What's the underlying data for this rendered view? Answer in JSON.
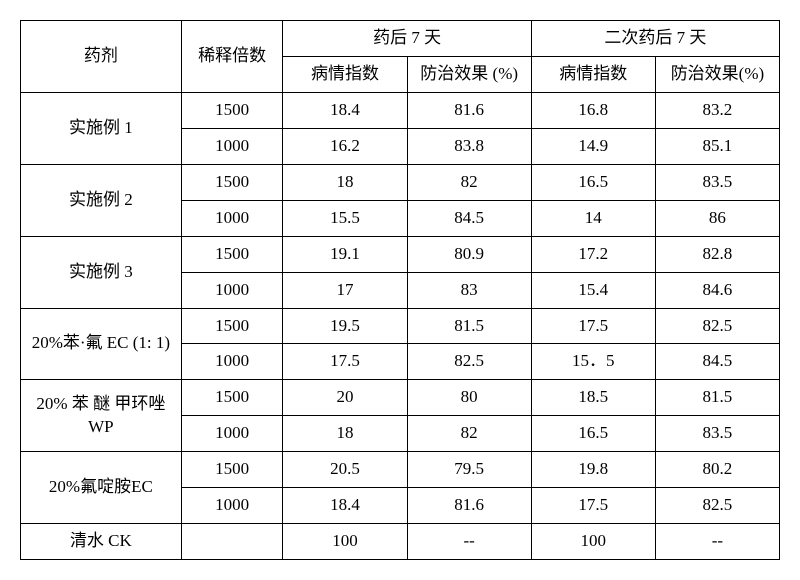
{
  "headers": {
    "agent": "药剂",
    "dilution": "稀释倍数",
    "group1": "药后 7 天",
    "group2": "二次药后 7 天",
    "disease_index": "病情指数",
    "control_effect": "防治效果 (%)",
    "control_effect2": "防治效果(%)"
  },
  "rows": [
    {
      "agent": "实施例 1",
      "data": [
        {
          "dil": "1500",
          "d7di": "18.4",
          "d7ce": "81.6",
          "s7di": "16.8",
          "s7ce": "83.2"
        },
        {
          "dil": "1000",
          "d7di": "16.2",
          "d7ce": "83.8",
          "s7di": "14.9",
          "s7ce": "85.1"
        }
      ]
    },
    {
      "agent": "实施例 2",
      "data": [
        {
          "dil": "1500",
          "d7di": "18",
          "d7ce": "82",
          "s7di": "16.5",
          "s7ce": "83.5"
        },
        {
          "dil": "1000",
          "d7di": "15.5",
          "d7ce": "84.5",
          "s7di": "14",
          "s7ce": "86"
        }
      ]
    },
    {
      "agent": "实施例 3",
      "data": [
        {
          "dil": "1500",
          "d7di": "19.1",
          "d7ce": "80.9",
          "s7di": "17.2",
          "s7ce": "82.8"
        },
        {
          "dil": "1000",
          "d7di": "17",
          "d7ce": "83",
          "s7di": "15.4",
          "s7ce": "84.6"
        }
      ]
    },
    {
      "agent": "20%苯·氟 EC (1: 1)",
      "data": [
        {
          "dil": "1500",
          "d7di": "19.5",
          "d7ce": "81.5",
          "s7di": "17.5",
          "s7ce": "82.5"
        },
        {
          "dil": "1000",
          "d7di": "17.5",
          "d7ce": "82.5",
          "s7di": "15．5",
          "s7ce": "84.5"
        }
      ]
    },
    {
      "agent": "20% 苯 醚 甲环唑 WP",
      "data": [
        {
          "dil": "1500",
          "d7di": "20",
          "d7ce": "80",
          "s7di": "18.5",
          "s7ce": "81.5"
        },
        {
          "dil": "1000",
          "d7di": "18",
          "d7ce": "82",
          "s7di": "16.5",
          "s7ce": "83.5"
        }
      ]
    },
    {
      "agent": "20%氟啶胺EC",
      "data": [
        {
          "dil": "1500",
          "d7di": "20.5",
          "d7ce": "79.5",
          "s7di": "19.8",
          "s7ce": "80.2"
        },
        {
          "dil": "1000",
          "d7di": "18.4",
          "d7ce": "81.6",
          "s7di": "17.5",
          "s7ce": "82.5"
        }
      ]
    },
    {
      "agent": "清水 CK",
      "single": true,
      "data": [
        {
          "dil": "",
          "d7di": "100",
          "d7ce": "--",
          "s7di": "100",
          "s7ce": "--"
        }
      ]
    }
  ],
  "style": {
    "border_color": "#000000",
    "background": "#ffffff",
    "font_size_pt": 13
  }
}
